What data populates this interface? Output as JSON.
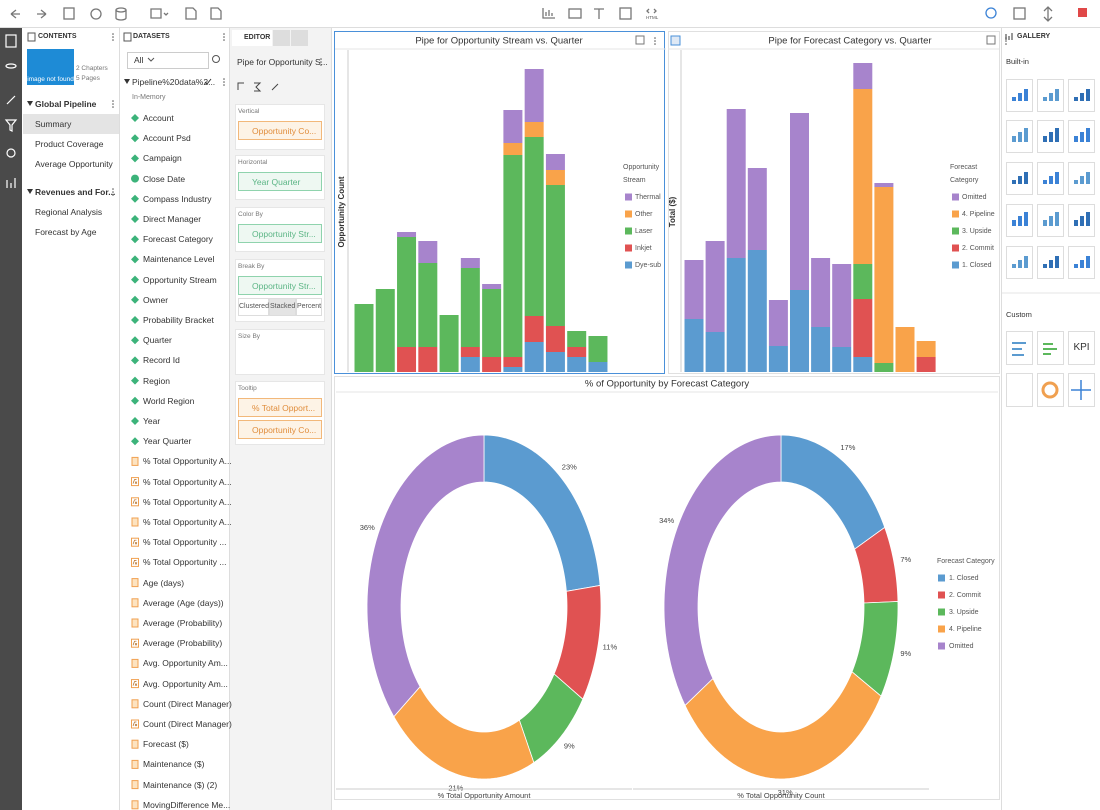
{
  "toolbar": {
    "html_label": "HTML"
  },
  "contents": {
    "header": "CONTENTS",
    "thumbnail_text": "image not found",
    "chapters": "2 Chapters",
    "pages": "5 Pages",
    "tree": [
      {
        "title": "Global Pipeline",
        "pages": [
          "Summary",
          "Product Coverage",
          "Average Opportunity"
        ]
      },
      {
        "title": "Revenues and For...",
        "pages": [
          "Regional Analysis",
          "Forecast by Age"
        ]
      }
    ]
  },
  "datasets": {
    "header": "DATASETS",
    "filter": "All",
    "source": "Pipeline%20data%2...",
    "storage": "In-Memory",
    "fields": [
      {
        "kind": "dim",
        "label": "Account"
      },
      {
        "kind": "dim",
        "label": "Account Psd"
      },
      {
        "kind": "dim",
        "label": "Campaign"
      },
      {
        "kind": "date",
        "label": "Close Date"
      },
      {
        "kind": "dim",
        "label": "Compass Industry"
      },
      {
        "kind": "dim",
        "label": "Direct Manager"
      },
      {
        "kind": "dim",
        "label": "Forecast Category"
      },
      {
        "kind": "dim",
        "label": "Maintenance Level"
      },
      {
        "kind": "dim",
        "label": "Opportunity Stream"
      },
      {
        "kind": "dim",
        "label": "Owner"
      },
      {
        "kind": "dim",
        "label": "Probability Bracket"
      },
      {
        "kind": "dim",
        "label": "Quarter"
      },
      {
        "kind": "dim",
        "label": "Record Id"
      },
      {
        "kind": "dim",
        "label": "Region"
      },
      {
        "kind": "dim",
        "label": "World Region"
      },
      {
        "kind": "dim",
        "label": "Year"
      },
      {
        "kind": "dim",
        "label": "Year Quarter"
      },
      {
        "kind": "measure",
        "label": "% Total Opportunity A..."
      },
      {
        "kind": "calc",
        "label": "% Total Opportunity A..."
      },
      {
        "kind": "calc",
        "label": "% Total Opportunity A..."
      },
      {
        "kind": "measure",
        "label": "% Total Opportunity A..."
      },
      {
        "kind": "calc",
        "label": "% Total Opportunity ..."
      },
      {
        "kind": "calc",
        "label": "% Total Opportunity ..."
      },
      {
        "kind": "measure",
        "label": "Age (days)"
      },
      {
        "kind": "measure",
        "label": "Average (Age (days))"
      },
      {
        "kind": "measure",
        "label": "Average (Probability)"
      },
      {
        "kind": "calc",
        "label": "Average (Probability)"
      },
      {
        "kind": "measure",
        "label": "Avg. Opportunity Am..."
      },
      {
        "kind": "calc",
        "label": "Avg. Opportunity Am..."
      },
      {
        "kind": "measure",
        "label": "Count (Direct Manager)"
      },
      {
        "kind": "calc",
        "label": "Count (Direct Manager)"
      },
      {
        "kind": "measure",
        "label": "Forecast ($)"
      },
      {
        "kind": "measure",
        "label": "Maintenance ($)"
      },
      {
        "kind": "measure",
        "label": "Maintenance ($) (2)"
      },
      {
        "kind": "measure",
        "label": "MovingDifference Me..."
      }
    ]
  },
  "editor": {
    "tab": "EDITOR",
    "chart_name": "Pipe for Opportunity S...",
    "sections": [
      {
        "label": "Vertical",
        "fields": [
          {
            "kind": "measure",
            "label": "Opportunity Co..."
          }
        ]
      },
      {
        "label": "Horizontal",
        "fields": [
          {
            "kind": "dim",
            "label": "Year Quarter"
          }
        ]
      },
      {
        "label": "Color By",
        "fields": [
          {
            "kind": "dim",
            "label": "Opportunity Str..."
          }
        ]
      },
      {
        "label": "Break By",
        "fields": [
          {
            "kind": "dim",
            "label": "Opportunity Str..."
          }
        ],
        "options": [
          "Clustered",
          "Stacked",
          "Percent"
        ]
      },
      {
        "label": "Size By",
        "fields": []
      },
      {
        "label": "Tooltip",
        "fields": [
          {
            "kind": "calc",
            "label": "% Total Opport..."
          },
          {
            "kind": "measure",
            "label": "Opportunity Co..."
          }
        ]
      }
    ]
  },
  "chart_data": [
    {
      "type": "bar",
      "stacked": true,
      "title": "Pipe for Opportunity Stream vs. Quarter",
      "y_label": "Opportunity Count",
      "legend_title": "Opportunity Stream",
      "categories": [
        null,
        null,
        null,
        null,
        null,
        null,
        null,
        null,
        null,
        null,
        null,
        null
      ],
      "ylim": [
        0,
        320
      ],
      "series": [
        {
          "name": "Thermal",
          "color": "#a784cc",
          "values": [
            null,
            null,
            5,
            22,
            null,
            10,
            5,
            33,
            53,
            16,
            null,
            null
          ]
        },
        {
          "name": "Other",
          "color": "#f9a34a",
          "values": [
            null,
            null,
            null,
            null,
            null,
            null,
            null,
            12,
            15,
            15,
            null,
            null
          ]
        },
        {
          "name": "Laser",
          "color": "#5cb85c",
          "values": [
            68,
            83,
            110,
            84,
            57,
            79,
            68,
            202,
            179,
            141,
            16,
            26
          ]
        },
        {
          "name": "Inkjet",
          "color": "#e05252",
          "values": [
            null,
            null,
            25,
            25,
            null,
            10,
            15,
            10,
            26,
            26,
            10,
            null
          ]
        },
        {
          "name": "Dye-sub",
          "color": "#5b9bd0",
          "values": [
            null,
            null,
            null,
            null,
            null,
            15,
            null,
            5,
            30,
            20,
            15,
            10
          ]
        }
      ]
    },
    {
      "type": "bar",
      "stacked": true,
      "title": "Pipe for Forecast Category vs. Quarter",
      "y_label": "Total ($)",
      "legend_title": "Forecast Category",
      "categories": [
        null,
        null,
        null,
        null,
        null,
        null,
        null,
        null,
        null,
        null,
        null,
        null
      ],
      "ylim": [
        0,
        320
      ],
      "series": [
        {
          "name": "Omitted",
          "color": "#a784cc",
          "values": [
            59,
            91,
            149,
            82,
            46,
            177,
            69,
            83,
            26,
            4,
            null,
            null
          ]
        },
        {
          "name": "4. Pipeline",
          "color": "#f9a34a",
          "values": [
            null,
            null,
            null,
            null,
            null,
            null,
            null,
            null,
            175,
            176,
            45,
            16
          ]
        },
        {
          "name": "3. Upside",
          "color": "#5cb85c",
          "values": [
            null,
            null,
            null,
            null,
            null,
            null,
            null,
            null,
            35,
            9,
            null,
            null
          ]
        },
        {
          "name": "2. Commit",
          "color": "#e05252",
          "values": [
            null,
            null,
            null,
            null,
            null,
            null,
            null,
            null,
            58,
            null,
            null,
            15
          ]
        },
        {
          "name": "1. Closed",
          "color": "#5b9bd0",
          "values": [
            53,
            40,
            114,
            122,
            26,
            82,
            45,
            25,
            15,
            null,
            null,
            null
          ]
        }
      ]
    },
    {
      "type": "donut",
      "title": "% of Opportunity by Forecast Category",
      "legend_title": "Forecast Category",
      "categories": [
        "1. Closed",
        "2. Commit",
        "3. Upside",
        "4. Pipeline",
        "Omitted"
      ],
      "colors": [
        "#5b9bd0",
        "#e05252",
        "#5cb85c",
        "#f9a34a",
        "#a784cc"
      ],
      "series": [
        {
          "name": "% Total Opportunity Amount",
          "values": [
            23,
            11,
            9,
            21,
            36
          ],
          "value_labels": [
            "23%",
            "11%",
            "9%",
            "21%",
            "36%"
          ]
        },
        {
          "name": "% Total Opportunity Count",
          "values": [
            17,
            7,
            9,
            31,
            34
          ],
          "value_labels": [
            "17%",
            "7%",
            "9%",
            "31%",
            "34%"
          ]
        }
      ]
    }
  ],
  "gallery": {
    "header": "GALLERY",
    "builtin": "Built-in",
    "custom": "Custom",
    "kpi": "KPI"
  }
}
